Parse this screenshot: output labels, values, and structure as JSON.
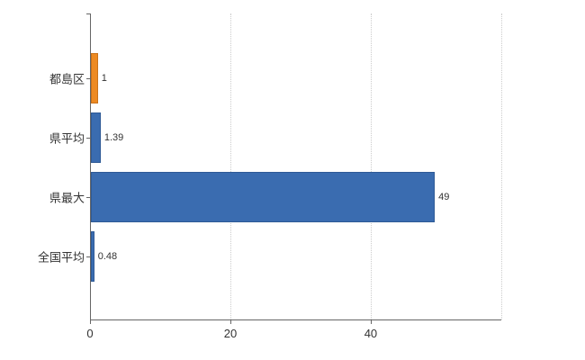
{
  "chart_data": {
    "type": "bar",
    "orientation": "horizontal",
    "title": "",
    "xlabel": "",
    "ylabel": "",
    "categories": [
      "都島区",
      "県平均",
      "県最大",
      "全国平均"
    ],
    "values": [
      1,
      1.39,
      49,
      0.48
    ],
    "value_labels": [
      "1",
      "1.39",
      "49",
      "0.48"
    ],
    "bar_colors": [
      "#ED8A22",
      "#3A6CB0",
      "#3A6CB0",
      "#3A6CB0"
    ],
    "bar_border_colors": [
      "#c9721a",
      "#2e5a96",
      "#2e5a96",
      "#2e5a96"
    ],
    "xticks": [
      0,
      20,
      40
    ],
    "xtick_labels": [
      "0",
      "20",
      "40"
    ],
    "xlim": [
      0,
      58.6
    ],
    "grid": "vertical-dotted",
    "legend": "none",
    "colors": {
      "axis": "#666666",
      "gridline": "#cccccc",
      "text": "#333333",
      "background": "#ffffff"
    }
  }
}
